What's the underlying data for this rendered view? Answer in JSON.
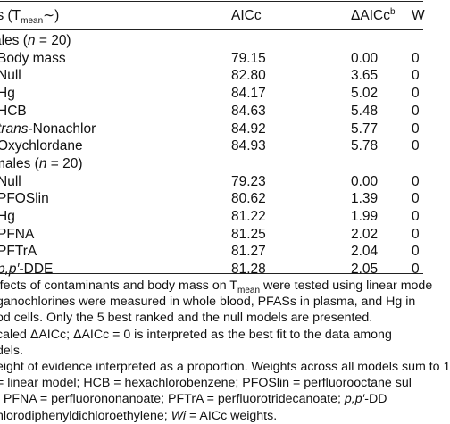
{
  "header": {
    "model": "ls (T",
    "model_sub": "mean",
    "model_tail": "∼)",
    "aicc": "AICc",
    "daicc": "ΔAICc",
    "daicc_sup": "b",
    "w": "W"
  },
  "groups": [
    {
      "label_prefix": "ales (",
      "label_n": "n",
      "label_suffix": " = 20)",
      "rows": [
        {
          "model": "Body mass",
          "aicc": "79.15",
          "daicc": "0.00",
          "w": "0"
        },
        {
          "model": "Null",
          "aicc": "82.80",
          "daicc": "3.65",
          "w": "0"
        },
        {
          "model": "Hg",
          "aicc": "84.17",
          "daicc": "5.02",
          "w": "0"
        },
        {
          "model": "HCB",
          "aicc": "84.63",
          "daicc": "5.48",
          "w": "0"
        },
        {
          "model_italic": "trans",
          "model": "-Nonachlor",
          "aicc": "84.92",
          "daicc": "5.77",
          "w": "0"
        },
        {
          "model": "Oxychlordane",
          "aicc": "84.93",
          "daicc": "5.78",
          "w": "0"
        }
      ]
    },
    {
      "label_prefix": "males (",
      "label_n": "n",
      "label_suffix": " = 20)",
      "rows": [
        {
          "model": "Null",
          "aicc": "79.23",
          "daicc": "0.00",
          "w": "0"
        },
        {
          "model": "PFOSlin",
          "aicc": "80.62",
          "daicc": "1.39",
          "w": "0"
        },
        {
          "model": "Hg",
          "aicc": "81.22",
          "daicc": "1.99",
          "w": "0"
        },
        {
          "model": "PFNA",
          "aicc": "81.25",
          "daicc": "2.02",
          "w": "0"
        },
        {
          "model": "PFTrA",
          "aicc": "81.27",
          "daicc": "2.04",
          "w": "0"
        },
        {
          "model_italic": "p,p′",
          "model": "-DDE",
          "aicc": "81.28",
          "daicc": "2.05",
          "w": "0"
        }
      ]
    }
  ],
  "notes": [
    {
      "a": "ffects of contaminants and body mass on T",
      "sub": "mean",
      "b": " were tested using linear mode"
    },
    {
      "a": "ganochlorines were measured in whole blood, PFASs in plasma, and Hg in"
    },
    {
      "a": "od cells. Only the 5 best ranked and the null models are presented."
    },
    {
      "a": "caled ΔAICc; ΔAICc = 0 is interpreted as the best fit to the data among"
    },
    {
      "a": "dels."
    },
    {
      "a": "eight of evidence interpreted as a proportion. Weights across all models sum to 1"
    },
    {
      "a": " = linear model; HCB = hexachlorobenzene; PFOSlin = perfluorooctane sul"
    },
    {
      "a": "; PFNA = perfluorononanoate; PFTrA = perfluorotridecanoate; ",
      "i": "p,p′",
      "b": "-DD"
    },
    {
      "a": "hlorodiphenyldichloroethylene; ",
      "i": "Wi",
      "b": " = AICc weights."
    }
  ]
}
